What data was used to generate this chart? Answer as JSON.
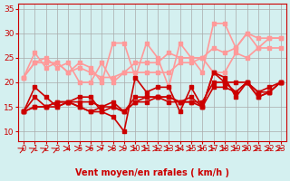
{
  "bg_color": "#d4f0f0",
  "grid_color": "#aaaaaa",
  "xlabel": "Vent moyen/en rafales ( km/h )",
  "xlabel_color": "#cc0000",
  "tick_color": "#cc0000",
  "ylim": [
    8,
    36
  ],
  "yticks": [
    10,
    15,
    20,
    25,
    30,
    35
  ],
  "xlim": [
    -0.5,
    23.5
  ],
  "xticks": [
    0,
    1,
    2,
    3,
    4,
    5,
    6,
    7,
    8,
    9,
    10,
    11,
    12,
    13,
    14,
    15,
    16,
    17,
    18,
    19,
    20,
    21,
    22,
    23
  ],
  "light_lines": [
    [
      21,
      26,
      23,
      24,
      22,
      24,
      23,
      20,
      28,
      28,
      21,
      28,
      25,
      19,
      28,
      25,
      22,
      32,
      32,
      27,
      30,
      27,
      29,
      29
    ],
    [
      21,
      24,
      24,
      24,
      22,
      23,
      22,
      21,
      21,
      22,
      24,
      24,
      24,
      26,
      25,
      25,
      25,
      27,
      26,
      27,
      30,
      29,
      29,
      29
    ],
    [
      21,
      24,
      25,
      23,
      24,
      20,
      20,
      24,
      20,
      22,
      22,
      22,
      22,
      22,
      24,
      24,
      25,
      22,
      22,
      26,
      25,
      27,
      27,
      27
    ]
  ],
  "dark_lines": [
    [
      14,
      19,
      17,
      15,
      16,
      15,
      14,
      14,
      13,
      10,
      21,
      18,
      19,
      19,
      14,
      19,
      15,
      22,
      20,
      20,
      20,
      18,
      19,
      20
    ],
    [
      14,
      17,
      15,
      16,
      16,
      17,
      17,
      14,
      15,
      14,
      17,
      17,
      17,
      17,
      16,
      17,
      15,
      22,
      21,
      17,
      20,
      17,
      18,
      20
    ],
    [
      14,
      15,
      15,
      16,
      16,
      15,
      14,
      15,
      16,
      14,
      16,
      16,
      17,
      17,
      16,
      16,
      16,
      20,
      20,
      18,
      20,
      17,
      18,
      20
    ],
    [
      14,
      15,
      15,
      15,
      16,
      16,
      16,
      15,
      15,
      14,
      16,
      17,
      17,
      16,
      16,
      16,
      15,
      19,
      19,
      18,
      20,
      18,
      18,
      20
    ]
  ],
  "light_color": "#ff9999",
  "dark_color": "#cc0000",
  "arrow_color": "#cc0000",
  "marker_size": 3,
  "linewidth": 1.2
}
